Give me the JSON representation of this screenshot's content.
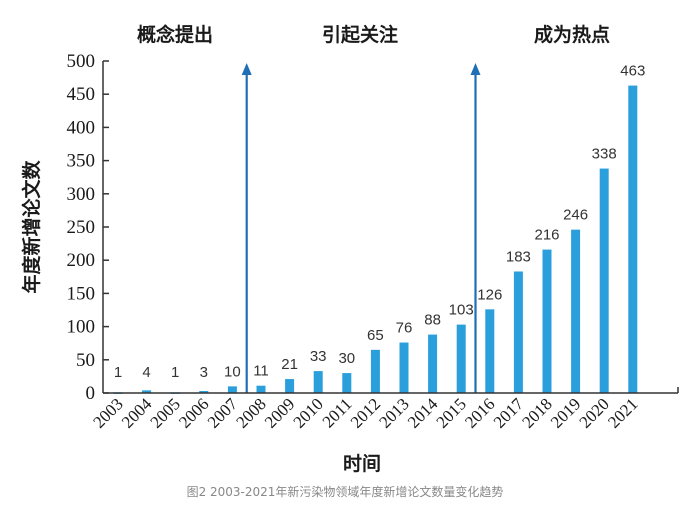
{
  "chart_data": {
    "type": "bar",
    "title": "",
    "xlabel": "时间",
    "ylabel": "年度新增论文数",
    "ylim": [
      0,
      500
    ],
    "yticks": [
      0,
      50,
      100,
      150,
      200,
      250,
      300,
      350,
      400,
      450,
      500
    ],
    "categories": [
      "2003",
      "2004",
      "2005",
      "2006",
      "2007",
      "2008",
      "2009",
      "2010",
      "2011",
      "2012",
      "2013",
      "2014",
      "2015",
      "2016",
      "2017",
      "2018",
      "2019",
      "2020",
      "2021"
    ],
    "values": [
      1,
      4,
      1,
      3,
      10,
      11,
      21,
      33,
      30,
      65,
      76,
      88,
      103,
      126,
      183,
      216,
      246,
      338,
      463
    ],
    "bar_color": "#2a9fdc",
    "arrow_color": "#1f6fb5",
    "phases": [
      {
        "label": "概念提出"
      },
      {
        "label": "引起关注",
        "starts_between": [
          "2007",
          "2008"
        ]
      },
      {
        "label": "成为热点",
        "starts_between": [
          "2015",
          "2016"
        ]
      }
    ],
    "grid": false,
    "legend": "none",
    "caption": "图2 2003-2021年新污染物领域年度新增论文数量变化趋势"
  }
}
